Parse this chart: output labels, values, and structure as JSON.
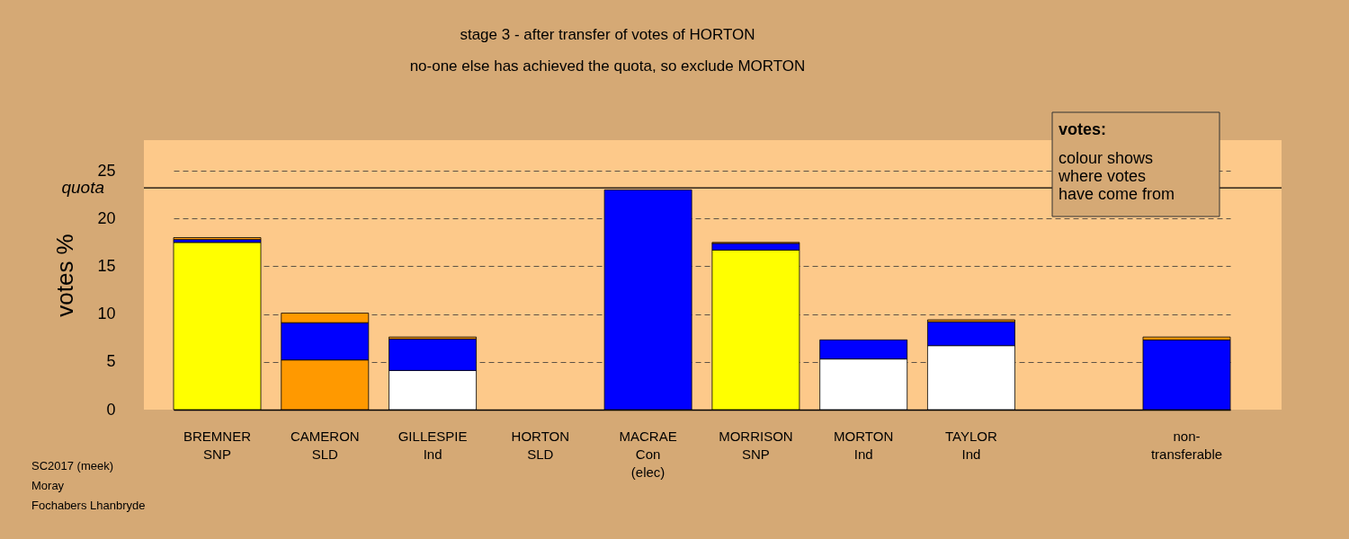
{
  "chart_data": {
    "type": "bar",
    "stacked": true,
    "title": "stage 3 - after transfer of votes of HORTON",
    "subtitle": "no-one else has achieved the quota, so exclude MORTON",
    "ylabel": "votes %",
    "categories": [
      "BREMNER\nSNP",
      "CAMERON\nSLD",
      "GILLESPIE\nInd",
      "HORTON\nSLD",
      "MACRAE\nCon\n(elec)",
      "MORRISON\nSNP",
      "MORTON\nInd",
      "TAYLOR\nInd",
      null,
      "non-\ntransferable"
    ],
    "series": [
      {
        "colors": [
          "#ffff00",
          "#ff9900",
          "#ffffff",
          null,
          "#0000ff",
          "#ffff00",
          "#ffffff",
          "#ffffff",
          null,
          null
        ],
        "values": [
          17.5,
          5.2,
          4.1,
          null,
          23.0,
          16.7,
          5.3,
          6.7,
          null,
          null
        ]
      },
      {
        "color": "#0000ff",
        "values": [
          0.3,
          3.9,
          3.3,
          null,
          null,
          0.7,
          2.0,
          2.5,
          null,
          7.3
        ]
      },
      {
        "color": "#ff9900",
        "values": [
          0.2,
          1.0,
          0.2,
          null,
          null,
          0.1,
          null,
          0.2,
          null,
          0.3
        ]
      }
    ],
    "ylim": [
      0,
      28.2
    ],
    "yticks": [
      0,
      5,
      10,
      15,
      20,
      25
    ],
    "grid": true,
    "ref_lines": [
      {
        "axis": "y",
        "value": 23.2,
        "label": "quota"
      }
    ],
    "annotations": [
      "votes:",
      "colour shows\nwhere votes\nhave come from",
      "SC2017 (meek)\nMoray\nFochabers Lhanbryde"
    ]
  }
}
